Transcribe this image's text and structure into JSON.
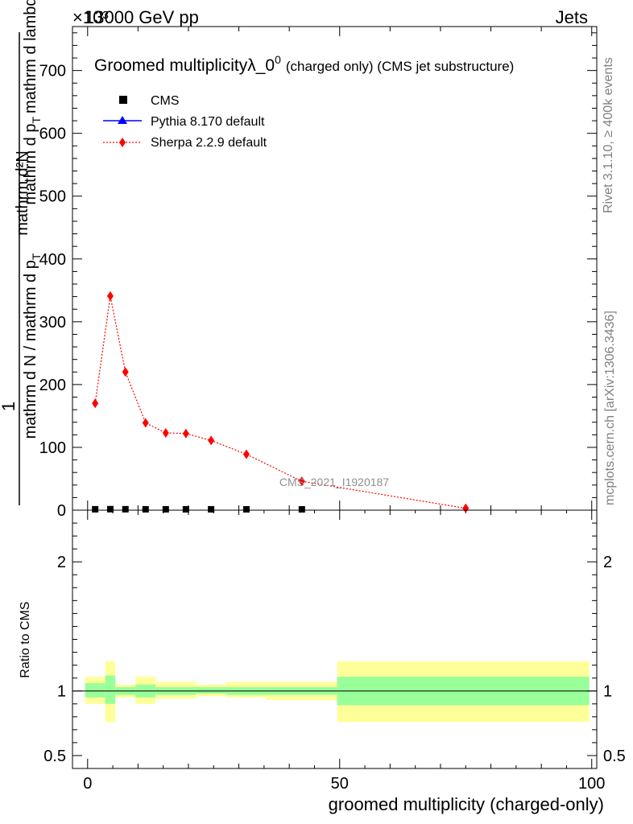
{
  "header": {
    "energy_label": "13000 GeV pp",
    "process_label": "Jets",
    "exponent_label": "×10³",
    "title_main": "Groomed multiplicity",
    "title_lambda": "λ_0",
    "title_sup": "0",
    "title_suffix": "(charged only) (CMS jet substructure)",
    "side_label_rivet": "Rivet 3.1.10, ≥ 400k events",
    "side_label_mcplots": "mcplots.cern.ch [arXiv:1306.3436]",
    "analysis_id": "CMS_2021_I1920187"
  },
  "axes": {
    "ylabel_numerator_1": "1",
    "ylabel_denominator_1": "mathrm d N / mathrm d p",
    "ylabel_denominator_1_sub": "T",
    "ylabel_numerator_2": "mathrm d²N",
    "ylabel_denominator_2": "mathrm d p",
    "ylabel_denominator_2_sub": "T",
    "ylabel_denominator_2_rest": "mathrm d lambda",
    "ratio_ylabel": "Ratio to CMS",
    "xlabel": "groomed multiplicity (charged-only)"
  },
  "legend": {
    "items": [
      {
        "label": "CMS",
        "color": "#000000",
        "marker": "square"
      },
      {
        "label": "Pythia 8.170 default",
        "color": "#0000ff",
        "marker": "triangle"
      },
      {
        "label": "Sherpa 2.2.9 default",
        "color": "#ff0000",
        "marker": "diamond"
      }
    ]
  },
  "chart_data": {
    "type": "line",
    "xlim": [
      -3,
      101
    ],
    "ylim": [
      0,
      770
    ],
    "yticks": [
      0,
      100,
      200,
      300,
      400,
      500,
      600,
      700
    ],
    "xticks": [
      0,
      50,
      100
    ],
    "ratio_ylim": [
      0.4,
      2.4
    ],
    "ratio_yticks": [
      0.5,
      1,
      2
    ],
    "ratio_ytick_labels": [
      "0.5",
      "1",
      "2"
    ],
    "series": [
      {
        "name": "CMS",
        "color": "#000000",
        "x": [
          1.5,
          4.5,
          7.5,
          11.5,
          15.5,
          19.5,
          24.5,
          31.5,
          42.5
        ],
        "y": [
          0.17,
          0.34,
          0.22,
          0.14,
          0.12,
          0.12,
          0.11,
          0.09,
          0.05
        ]
      },
      {
        "name": "Pythia 8.170 default",
        "color": "#0000ff",
        "x": [],
        "y": []
      },
      {
        "name": "Sherpa 2.2.9 default",
        "color": "#ff0000",
        "x": [
          1.5,
          4.5,
          7.5,
          11.5,
          15.5,
          19.5,
          24.5,
          31.5,
          42.5,
          75
        ],
        "y": [
          170,
          341,
          220,
          139,
          123,
          122,
          111,
          89,
          46,
          3
        ]
      }
    ],
    "ratio_bands": [
      {
        "x0": -0.5,
        "x1": 3.5,
        "inner": [
          0.95,
          1.06
        ],
        "outer": [
          0.9,
          1.11
        ]
      },
      {
        "x0": 3.5,
        "x1": 5.5,
        "inner": [
          0.9,
          1.12
        ],
        "outer": [
          0.76,
          1.23
        ]
      },
      {
        "x0": 5.5,
        "x1": 9.5,
        "inner": [
          0.97,
          1.03
        ],
        "outer": [
          0.95,
          1.05
        ]
      },
      {
        "x0": 9.5,
        "x1": 13.5,
        "inner": [
          0.95,
          1.05
        ],
        "outer": [
          0.9,
          1.11
        ]
      },
      {
        "x0": 13.5,
        "x1": 21.5,
        "inner": [
          0.97,
          1.03
        ],
        "outer": [
          0.94,
          1.07
        ]
      },
      {
        "x0": 21.5,
        "x1": 27.5,
        "inner": [
          0.98,
          1.03
        ],
        "outer": [
          0.96,
          1.05
        ]
      },
      {
        "x0": 27.5,
        "x1": 35.5,
        "inner": [
          0.97,
          1.03
        ],
        "outer": [
          0.95,
          1.07
        ]
      },
      {
        "x0": 35.5,
        "x1": 49.5,
        "inner": [
          0.97,
          1.03
        ],
        "outer": [
          0.93,
          1.07
        ]
      },
      {
        "x0": 49.5,
        "x1": 99.5,
        "inner": [
          0.89,
          1.11
        ],
        "outer": [
          0.76,
          1.23
        ]
      }
    ],
    "band_colors": {
      "inner": "#99ff99",
      "outer": "#ffff99"
    }
  }
}
